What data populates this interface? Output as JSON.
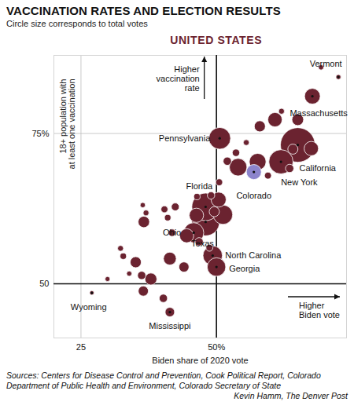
{
  "chart_data": {
    "type": "scatter",
    "title": "VACCINATION RATES AND ELECTION RESULTS",
    "subtitle": "Circle size corresponds to total votes",
    "caption": "Sources: Centers for Disease Control and Prevention, Cook Political Report, Colorado Department of Public Health and Environment, Colorado Secretary of State",
    "credit": "Kevin Hamm, The Denver Post",
    "x_label": "Biden share of 2020 vote",
    "y_label": "18+ population with\nat least one vaccination",
    "annotations": [
      "UNITED STATES",
      "Higher\nvaccination\nrate",
      "Higher\nBiden vote"
    ],
    "x": [
      72.5,
      67.7,
      50.6,
      65.0,
      61.9,
      56.9,
      48.0,
      45.8,
      48.0,
      49.3,
      50.0,
      27.0,
      41.4,
      69.3,
      65.0,
      60.8,
      58.0,
      62.0,
      67.5,
      64.1,
      57.6,
      54.0,
      53.6,
      52.0,
      63.5,
      59.5,
      55.5,
      50.5,
      49.0,
      46.4,
      50.4,
      51.2,
      49.6,
      46.3,
      42.4,
      40.4,
      36.4,
      36.6,
      37.0,
      41.0,
      41.8,
      44.5,
      46.8,
      32.3,
      32.8,
      35.1,
      33.9,
      36.2,
      37.9,
      36.5,
      29.9,
      41.4,
      44.0,
      40.2,
      48.7
    ],
    "values": [
      84.4,
      81.2,
      74.2,
      73.1,
      70.3,
      68.6,
      62.8,
      58.5,
      60.3,
      54.7,
      52.8,
      48.5,
      45.3,
      86.0,
      77.3,
      77.3,
      76.2,
      78.7,
      72.5,
      72.4,
      70.3,
      69.4,
      71.8,
      70.4,
      69.2,
      68.0,
      73.5,
      66.9,
      64.7,
      64.5,
      64.0,
      61.5,
      62.0,
      61.4,
      62.8,
      62.4,
      63.1,
      60.3,
      61.8,
      61.0,
      58.5,
      58.0,
      57.0,
      55.9,
      54.6,
      53.6,
      51.7,
      51.4,
      50.8,
      48.8,
      50.8,
      54.2,
      52.8,
      47.6,
      56.0
    ],
    "votes": [
      0.37,
      3.6,
      6.9,
      17.5,
      8.6,
      3.3,
      11.1,
      5.9,
      11.3,
      5.5,
      5.0,
      0.28,
      1.3,
      0.4,
      2.0,
      3.0,
      1.8,
      0.5,
      3.0,
      1.5,
      4.1,
      4.5,
      0.8,
      1.0,
      1.0,
      0.7,
      0.5,
      0.7,
      0.8,
      0.6,
      3.3,
      5.5,
      1.5,
      3.0,
      0.9,
      0.7,
      0.4,
      1.9,
      0.5,
      0.6,
      0.8,
      2.9,
      1.0,
      0.5,
      0.6,
      1.8,
      0.4,
      1.0,
      2.1,
      1.5,
      0.36,
      2.4,
      1.5,
      1.0,
      0.7
    ],
    "labels": [
      "Vermont",
      "Massachusetts",
      "Pennsylvania",
      "California",
      "New York",
      "Colorado",
      "Florida",
      "Ohio",
      "Texas",
      "North Carolina",
      "Georgia",
      "Wyoming",
      "Mississippi",
      null,
      null,
      null,
      null,
      null,
      null,
      null,
      null,
      null,
      null,
      null,
      null,
      null,
      null,
      null,
      null,
      null,
      null,
      null,
      null,
      null,
      null,
      null,
      null,
      null,
      null,
      null,
      null,
      null,
      null,
      null,
      null,
      null,
      null,
      null,
      null,
      null,
      null,
      null,
      null,
      null,
      null
    ],
    "colors": [
      "#6b2330",
      "#6b2330",
      "#6b2330",
      "#6b2330",
      "#6b2330",
      "#8c84cc",
      "#6b2330",
      "#6b2330",
      "#6b2330",
      "#6b2330",
      "#6b2330",
      "#6b2330",
      "#6b2330",
      "#6b2330",
      "#6b2330",
      "#6b2330",
      "#6b2330",
      "#6b2330",
      "#6b2330",
      "#6b2330",
      "#6b2330",
      "#6b2330",
      "#6b2330",
      "#6b2330",
      "#6b2330",
      "#6b2330",
      "#6b2330",
      "#6b2330",
      "#6b2330",
      "#6b2330",
      "#6b2330",
      "#6b2330",
      "#6b2330",
      "#6b2330",
      "#6b2330",
      "#6b2330",
      "#6b2330",
      "#6b2330",
      "#6b2330",
      "#6b2330",
      "#6b2330",
      "#6b2330",
      "#6b2330",
      "#6b2330",
      "#6b2330",
      "#6b2330",
      "#6b2330",
      "#6b2330",
      "#6b2330",
      "#6b2330",
      "#6b2330",
      "#6b2330",
      "#6b2330",
      "#6b2330",
      "#6b2330"
    ],
    "xlim": [
      20,
      74
    ],
    "ylim": [
      41,
      88
    ],
    "xticks": [
      25,
      {
        "value": 50,
        "label": "50%"
      }
    ],
    "yticks": [
      50,
      {
        "value": 75,
        "label": "75%"
      }
    ],
    "reference_lines": {
      "x": 50,
      "y": 50
    },
    "grid": true
  }
}
